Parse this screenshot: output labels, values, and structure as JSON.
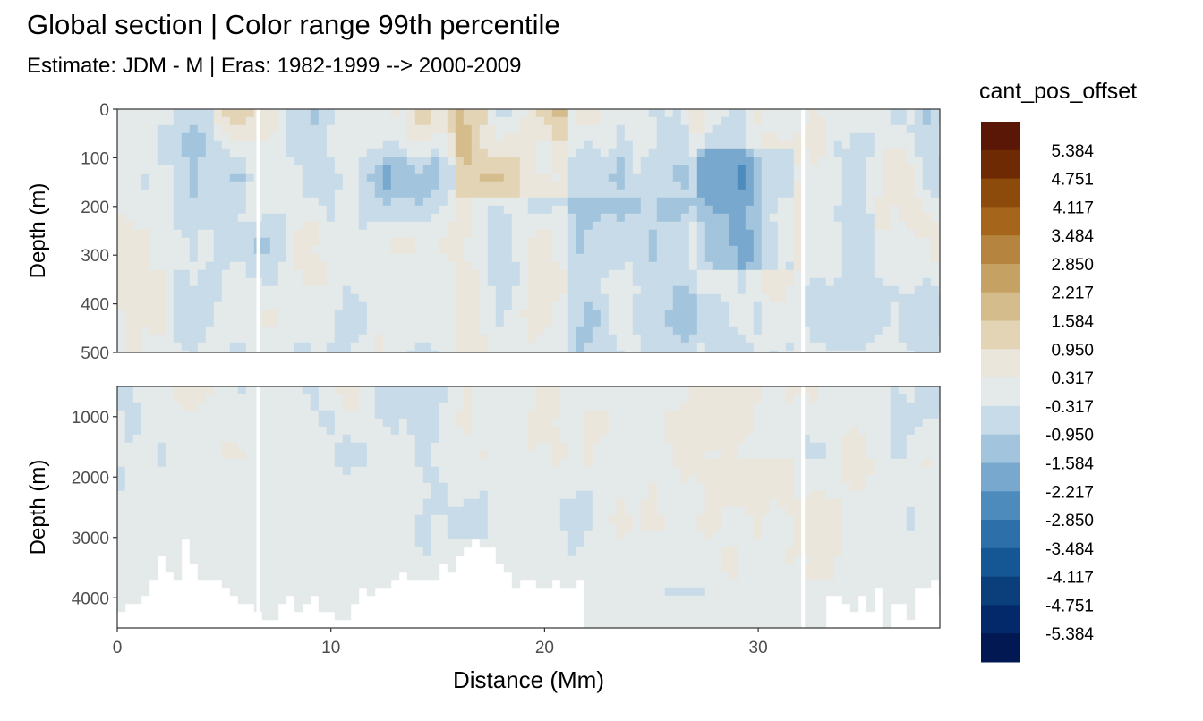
{
  "title": "Global section | Color range 99th percentile",
  "subtitle": "Estimate: JDM - M | Eras: 1982-1999 --> 2000-2009",
  "chart_data": [
    {
      "type": "heatmap",
      "panel": "upper",
      "ylabel": "Depth (m)",
      "ylim": [
        500,
        0
      ],
      "y_reversed": true,
      "yticks": [
        "0",
        "100",
        "200",
        "300",
        "400",
        "500"
      ],
      "xlim": [
        0,
        38.5
      ]
    },
    {
      "type": "heatmap",
      "panel": "lower",
      "xlabel": "Distance (Mm)",
      "ylabel": "Depth (m)",
      "ylim": [
        4500,
        500
      ],
      "y_reversed": true,
      "yticks": [
        "1000",
        "2000",
        "3000",
        "4000"
      ],
      "xticks": [
        "0",
        "10",
        "20",
        "30"
      ],
      "xlim": [
        0,
        38.5
      ]
    }
  ],
  "legend": {
    "title": "cant_pos_offset",
    "placement": "right",
    "labels": [
      "5.384",
      "4.751",
      "4.117",
      "3.484",
      "2.850",
      "2.217",
      "1.584",
      "0.950",
      "0.317",
      "-0.317",
      "-0.950",
      "-1.584",
      "-2.217",
      "-2.850",
      "-3.484",
      "-4.117",
      "-4.751",
      "-5.384"
    ],
    "colors": [
      "#5a1705",
      "#6e2a03",
      "#8c4a0b",
      "#a5661b",
      "#b5843e",
      "#c5a264",
      "#d5bc8c",
      "#e3d4b6",
      "#ebe6dc",
      "#e4e9ea",
      "#c8dbe8",
      "#a2c4dc",
      "#78a8cd",
      "#4d8bbd",
      "#2c6fa9",
      "#155794",
      "#0b3f7c",
      "#04296a",
      "#021852"
    ]
  }
}
